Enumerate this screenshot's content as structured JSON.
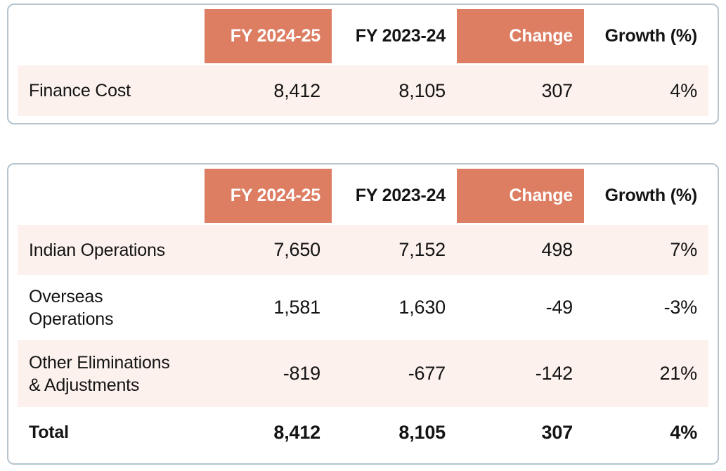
{
  "colors": {
    "accent": "#DD7E63",
    "row_tint": "#FCF1ED",
    "card_border": "#B5C4CE"
  },
  "finance_cost_table": {
    "headers": {
      "fy_2024_25": "FY 2024-25",
      "fy_2023_24": "FY 2023-24",
      "change": "Change",
      "growth_pct": "Growth (%)"
    },
    "rows": [
      {
        "label": "Finance Cost",
        "fy_2024_25": "8,412",
        "fy_2023_24": "8,105",
        "change": "307",
        "growth_pct": "4%"
      }
    ]
  },
  "segment_table": {
    "headers": {
      "fy_2024_25": "FY 2024-25",
      "fy_2023_24": "FY 2023-24",
      "change": "Change",
      "growth_pct": "Growth (%)"
    },
    "rows": [
      {
        "label": "Indian Operations",
        "fy_2024_25": "7,650",
        "fy_2023_24": "7,152",
        "change": "498",
        "growth_pct": "7%"
      },
      {
        "label": "Overseas Operations",
        "fy_2024_25": "1,581",
        "fy_2023_24": "1,630",
        "change": "-49",
        "growth_pct": "-3%"
      },
      {
        "label": "Other Eliminations & Adjustments",
        "fy_2024_25": "-819",
        "fy_2023_24": "-677",
        "change": "-142",
        "growth_pct": "21%"
      },
      {
        "label": "Total",
        "fy_2024_25": "8,412",
        "fy_2023_24": "8,105",
        "change": "307",
        "growth_pct": "4%"
      }
    ]
  }
}
